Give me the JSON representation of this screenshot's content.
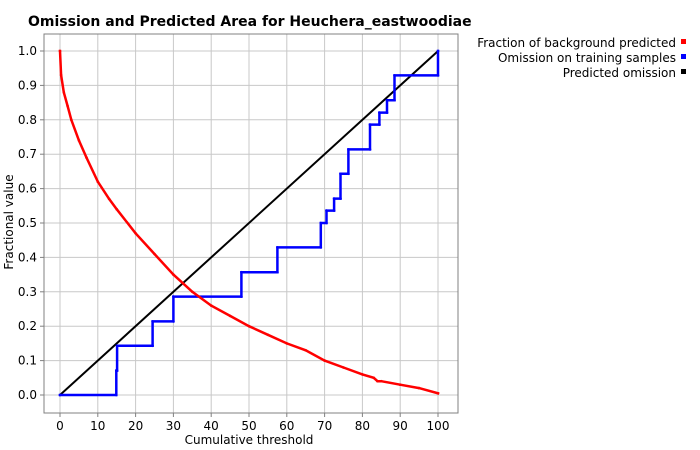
{
  "chart_data": {
    "type": "line",
    "title": "Omission and Predicted Area for Heuchera_eastwoodiae",
    "xlabel": "Cumulative threshold",
    "ylabel": "Fractional value",
    "xlim": [
      0,
      100
    ],
    "ylim": [
      0,
      1
    ],
    "x_ticks": [
      0,
      10,
      20,
      30,
      40,
      50,
      60,
      70,
      80,
      90,
      100
    ],
    "y_ticks": [
      0.0,
      0.1,
      0.2,
      0.3,
      0.4,
      0.5,
      0.6,
      0.7,
      0.8,
      0.9,
      1.0
    ],
    "x_tick_labels": [
      "0",
      "10",
      "20",
      "30",
      "40",
      "50",
      "60",
      "70",
      "80",
      "90",
      "100"
    ],
    "y_tick_labels": [
      "0.0",
      "0.1",
      "0.2",
      "0.3",
      "0.4",
      "0.5",
      "0.6",
      "0.7",
      "0.8",
      "0.9",
      "1.0"
    ],
    "grid": true,
    "legend_position": "top-right, outside plot",
    "series": [
      {
        "name": "Fraction of background predicted",
        "color": "#ff0000",
        "style": "dense-markers",
        "x": [
          0,
          0.3,
          1,
          2,
          3,
          5,
          7,
          10,
          13,
          15,
          20,
          25,
          30,
          35,
          40,
          45,
          50,
          55,
          60,
          65,
          70,
          75,
          80,
          83,
          84,
          85,
          90,
          95,
          100
        ],
        "y": [
          1.0,
          0.93,
          0.88,
          0.84,
          0.8,
          0.74,
          0.69,
          0.62,
          0.57,
          0.54,
          0.47,
          0.41,
          0.35,
          0.3,
          0.26,
          0.23,
          0.2,
          0.175,
          0.15,
          0.13,
          0.1,
          0.08,
          0.06,
          0.05,
          0.04,
          0.04,
          0.03,
          0.02,
          0.005
        ]
      },
      {
        "name": "Omission on training samples",
        "color": "#0000ff",
        "style": "step",
        "x": [
          0,
          14.9,
          14.9,
          15.1,
          15.1,
          24.5,
          24.5,
          30,
          30,
          48,
          48,
          57.5,
          57.5,
          69,
          69,
          70.5,
          70.5,
          72.5,
          72.5,
          74.2,
          74.2,
          76.3,
          76.3,
          82,
          82,
          84.5,
          84.5,
          86.5,
          86.5,
          88.5,
          88.5,
          100,
          100
        ],
        "y": [
          0,
          0,
          0.071,
          0.071,
          0.143,
          0.143,
          0.214,
          0.214,
          0.286,
          0.286,
          0.357,
          0.357,
          0.429,
          0.429,
          0.5,
          0.5,
          0.536,
          0.536,
          0.571,
          0.571,
          0.643,
          0.643,
          0.714,
          0.714,
          0.786,
          0.786,
          0.821,
          0.821,
          0.857,
          0.857,
          0.929,
          0.929,
          1.0
        ]
      },
      {
        "name": "Predicted omission",
        "color": "#000000",
        "style": "line",
        "x": [
          0,
          100
        ],
        "y": [
          0,
          1
        ]
      }
    ]
  }
}
